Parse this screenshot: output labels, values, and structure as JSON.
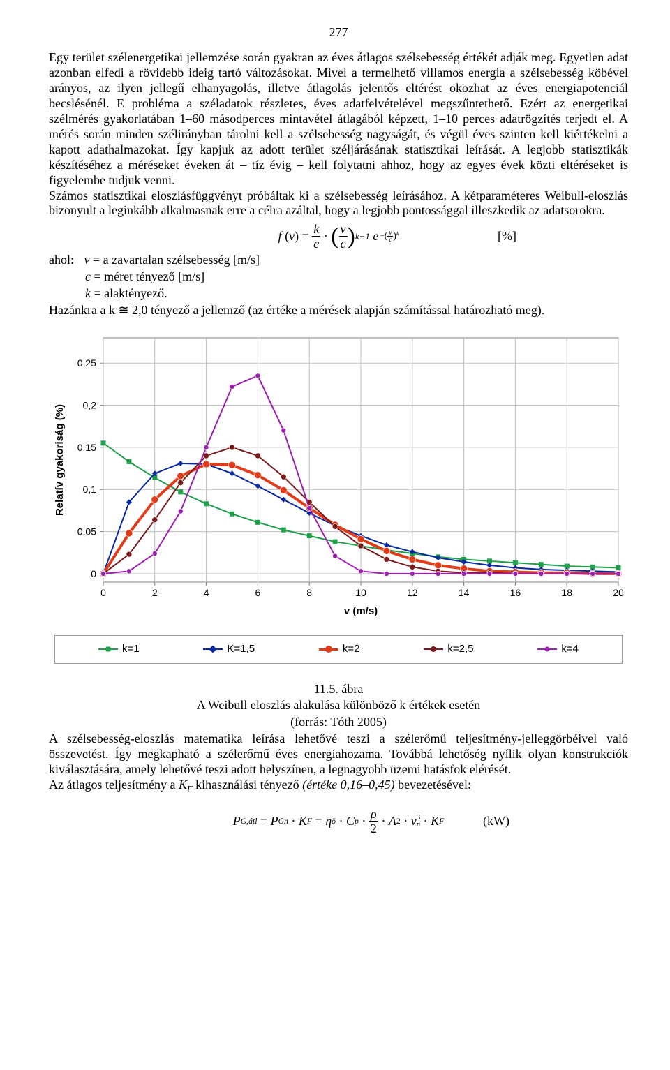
{
  "page_number": "277",
  "text": {
    "p1": "Egy terület szélenergetikai jellemzése során gyakran az éves átlagos szélsebesség értékét adják meg. Egyetlen adat azonban elfedi a rövidebb ideig tartó változásokat. Mivel a termelhető villamos energia a szélsebesség köbével arányos, az ilyen jellegű elhanyagolás, illetve átlagolás jelentős eltérést okozhat az éves energiapotenciál becslésénél. E probléma a széladatok részletes, éves adatfelvételével megszűntethető. Ezért az energetikai szélmérés gyakorlatában 1–60 másodperces mintavétel átlagából képzett, 1–10 perces adatrögzítés terjedt el. A mérés során minden szélirányban tárolni kell a szélsebesség nagyságát, és végül éves szinten kell kiértékelni a kapott adathalmazokat. Így kapjuk az adott terület széljárásának statisztikai leírását. A legjobb statisztikák készítéséhez a méréseket éveken át – tíz évig – kell folytatni ahhoz, hogy az egyes évek közti eltéréseket is figyelembe tudjuk venni.",
    "p2": "Számos statisztikai eloszlásfüggvényt próbáltak ki a szélsebesség leírásához. A kétparaméteres Weibull-eloszlás bizonyult a leginkább alkalmasnak erre a célra azáltal, hogy a legjobb pontossággal illeszkedik az adatsorokra.",
    "formula1_label": "[%]",
    "defs_lead": "ahol:",
    "def_v": "v = a zavartalan szélsebesség [m/s]",
    "def_c": "c = méret tényező [m/s]",
    "def_k": "k = alaktényező.",
    "p3": "Hazánkra a k ≅ 2,0 tényező a jellemző (az értéke a mérések alapján számítással határozható meg).",
    "fig_num": "11.5. ábra",
    "fig_title": "A Weibull eloszlás alakulása különböző k értékek esetén",
    "fig_source": "(forrás: Tóth 2005)",
    "p4": "A szélsebesség-eloszlás matematika leírása lehetővé teszi a szélerőmű teljesítmény-jelleggörbéivel való összevetést. Így megkapható a szélerőmű éves energiahozama. Továbbá lehetőség nyílik olyan konstrukciók kiválasztására, amely lehetővé teszi adott helyszínen, a legnagyobb üzemi hatásfok elérését.",
    "p5": "Az átlagos teljesítmény a ",
    "p5_i1": "K",
    "p5_i1s": "F",
    "p5_mid": " kihasználási tényező ",
    "p5_i2": "(értéke 0,16–0,45)",
    "p5_end": " bevezetésével:",
    "formula2_unit": "(kW)"
  },
  "chart": {
    "type": "line",
    "xlabel": "v (m/s)",
    "ylabel": "Relatív gyakoriság (%)",
    "axis_fontsize": 15,
    "tick_fontsize": 14,
    "plot_bg": "#ffffff",
    "grid_color": "#bfbfbf",
    "axis_color": "#808080",
    "xlim": [
      0,
      20
    ],
    "ylim": [
      -0.01,
      0.28
    ],
    "xticks": [
      0,
      2,
      4,
      6,
      8,
      10,
      12,
      14,
      16,
      18,
      20
    ],
    "yticks": [
      0,
      0.05,
      0.1,
      0.15,
      0.2,
      0.25
    ],
    "yticklabels": [
      "0",
      "0,05",
      "0,1",
      "0,15",
      "0,2",
      "0,25"
    ],
    "legend_labels": [
      "k=1",
      "K=1,5",
      "k=2",
      "k=2,5",
      "k=4"
    ],
    "series": [
      {
        "name": "k=1",
        "color": "#1fa04a",
        "line_width": 2,
        "marker": "square",
        "marker_size": 7,
        "x": [
          0,
          1,
          2,
          3,
          4,
          5,
          6,
          7,
          8,
          9,
          10,
          11,
          12,
          13,
          14,
          15,
          16,
          17,
          18,
          19,
          20
        ],
        "y": [
          0.155,
          0.133,
          0.114,
          0.097,
          0.083,
          0.071,
          0.061,
          0.052,
          0.045,
          0.038,
          0.033,
          0.028,
          0.024,
          0.02,
          0.017,
          0.015,
          0.013,
          0.011,
          0.009,
          0.008,
          0.007
        ]
      },
      {
        "name": "K=1,5",
        "color": "#082a9e",
        "line_width": 2,
        "marker": "diamond",
        "marker_size": 8,
        "x": [
          0,
          1,
          2,
          3,
          4,
          5,
          6,
          7,
          8,
          9,
          10,
          11,
          12,
          13,
          14,
          15,
          16,
          17,
          18,
          19,
          20
        ],
        "y": [
          0.0,
          0.085,
          0.119,
          0.131,
          0.13,
          0.119,
          0.104,
          0.088,
          0.072,
          0.057,
          0.045,
          0.034,
          0.026,
          0.019,
          0.014,
          0.01,
          0.007,
          0.005,
          0.004,
          0.003,
          0.002
        ]
      },
      {
        "name": "k=2",
        "color": "#e03c1a",
        "line_width": 4,
        "marker": "circle",
        "marker_size": 10,
        "x": [
          0,
          1,
          2,
          3,
          4,
          5,
          6,
          7,
          8,
          9,
          10,
          11,
          12,
          13,
          14,
          15,
          16,
          17,
          18,
          19,
          20
        ],
        "y": [
          0.0,
          0.048,
          0.088,
          0.116,
          0.13,
          0.129,
          0.117,
          0.099,
          0.078,
          0.058,
          0.041,
          0.027,
          0.017,
          0.01,
          0.006,
          0.003,
          0.002,
          0.001,
          0.001,
          0.0,
          0.0
        ]
      },
      {
        "name": "k=2,5",
        "color": "#7a1a1a",
        "line_width": 2,
        "marker": "circle",
        "marker_size": 8,
        "x": [
          0,
          1,
          2,
          3,
          4,
          5,
          6,
          7,
          8,
          9,
          10,
          11,
          12,
          13,
          14,
          15,
          16,
          17,
          18,
          19,
          20
        ],
        "y": [
          0.0,
          0.023,
          0.064,
          0.108,
          0.14,
          0.15,
          0.14,
          0.115,
          0.085,
          0.056,
          0.033,
          0.017,
          0.008,
          0.003,
          0.001,
          0.001,
          0.0,
          0.0,
          0.0,
          0.0,
          0.0
        ]
      },
      {
        "name": "k=4",
        "color": "#9d1fb0",
        "line_width": 2,
        "marker": "circle",
        "marker_size": 7,
        "x": [
          0,
          1,
          2,
          3,
          4,
          5,
          6,
          7,
          8,
          9,
          10,
          11,
          12,
          13,
          14,
          15,
          16,
          17,
          18,
          19,
          20
        ],
        "y": [
          0.0,
          0.003,
          0.024,
          0.074,
          0.15,
          0.222,
          0.235,
          0.17,
          0.078,
          0.021,
          0.003,
          0.0,
          0.0,
          0.0,
          0.0,
          0.0,
          0.0,
          0.0,
          0.0,
          0.0,
          0.0
        ]
      }
    ]
  }
}
